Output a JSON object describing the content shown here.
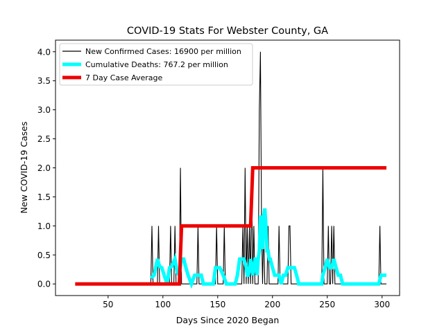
{
  "chart_data": {
    "type": "line",
    "title": "COVID-19 Stats For Webster County, GA",
    "xlabel": "Days Since 2020 Began",
    "ylabel": "New COVID-19 Cases",
    "xlim": [
      2,
      316
    ],
    "ylim": [
      -0.2,
      4.2
    ],
    "xticks": [
      50,
      100,
      150,
      200,
      250,
      300
    ],
    "yticks": [
      0.0,
      0.5,
      1.0,
      1.5,
      2.0,
      2.5,
      3.0,
      3.5,
      4.0
    ],
    "xtick_labels": [
      "50",
      "100",
      "150",
      "200",
      "250",
      "300"
    ],
    "ytick_labels": [
      "0.0",
      "0.5",
      "1.0",
      "1.5",
      "2.0",
      "2.5",
      "3.0",
      "3.5",
      "4.0"
    ],
    "grid": false,
    "legend_position": "top-left",
    "series": [
      {
        "name": "New Confirmed Cases: 16900 per million",
        "color": "#000000",
        "style": "thin",
        "x": [
          89,
          90,
          91,
          95,
          96,
          97,
          101,
          106,
          107,
          108,
          110,
          111,
          112,
          115,
          116,
          117,
          118,
          131,
          132,
          133,
          148,
          149,
          150,
          155,
          156,
          157,
          172,
          173,
          174,
          175,
          176,
          177,
          178,
          179,
          180,
          181,
          182,
          183,
          184,
          187,
          188,
          189,
          190,
          191,
          192,
          193,
          195,
          196,
          197,
          205,
          206,
          207,
          214,
          215,
          216,
          217,
          245,
          246,
          247,
          250,
          251,
          252,
          253,
          254,
          255,
          256,
          257,
          258,
          297,
          298,
          299,
          303
        ],
        "y": [
          0,
          1,
          0,
          0,
          1,
          0,
          0,
          0,
          1,
          0,
          0,
          1,
          0,
          0,
          2,
          0,
          0,
          0,
          1,
          0,
          0,
          1,
          0,
          0,
          1,
          0,
          0,
          1,
          0,
          2,
          0,
          1,
          0,
          1,
          0,
          2,
          0,
          1,
          0,
          0,
          3,
          4,
          1,
          0,
          1,
          0,
          0,
          1,
          0,
          0,
          1,
          0,
          0,
          1,
          1,
          0,
          0,
          2,
          0,
          0,
          1,
          0,
          0,
          1,
          0,
          1,
          0,
          0,
          0,
          1,
          0,
          0
        ]
      },
      {
        "name": "Cumulative Deaths: 767.2 per million",
        "color": "#00ffff",
        "style": "thick",
        "x": [
          89,
          92,
          95,
          97,
          99,
          102,
          104,
          106,
          108,
          111,
          113,
          115,
          117,
          119,
          121,
          123,
          126,
          129,
          132,
          135,
          137,
          139,
          141,
          143,
          146,
          148,
          150,
          152,
          155,
          158,
          161,
          164,
          166,
          168,
          170,
          172,
          174,
          176,
          177,
          178,
          179,
          180,
          181,
          182,
          183,
          184,
          185,
          186,
          187,
          188,
          189,
          190,
          191,
          192,
          193,
          194,
          195,
          196,
          197,
          198,
          200,
          202,
          204,
          206,
          208,
          210,
          212,
          214,
          216,
          218,
          220,
          222,
          224,
          226,
          230,
          235,
          240,
          243,
          245,
          246,
          248,
          250,
          252,
          254,
          256,
          258,
          260,
          262,
          264,
          268,
          275,
          285,
          295,
          297,
          299,
          304
        ],
        "y": [
          0.1,
          0.15,
          0.43,
          0.3,
          0.28,
          0.1,
          0.0,
          0.28,
          0.3,
          0.43,
          0.2,
          0.15,
          0.43,
          0.43,
          0.28,
          0.15,
          0.0,
          0.15,
          0.15,
          0.15,
          0.0,
          0.0,
          0.0,
          0.0,
          0.0,
          0.28,
          0.28,
          0.28,
          0.15,
          0.0,
          0.0,
          0.0,
          0.0,
          0.15,
          0.43,
          0.43,
          0.43,
          0.28,
          0.15,
          0.15,
          0.28,
          0.43,
          0.28,
          0.15,
          0.28,
          0.43,
          0.43,
          0.15,
          0.43,
          0.57,
          1.15,
          1.15,
          0.6,
          1.15,
          1.3,
          1.0,
          0.57,
          0.57,
          0.43,
          0.43,
          0.28,
          0.15,
          0.15,
          0.15,
          0.0,
          0.15,
          0.15,
          0.28,
          0.28,
          0.28,
          0.28,
          0.15,
          0.0,
          0.0,
          0.0,
          0.0,
          0.0,
          0.0,
          0.0,
          0.15,
          0.28,
          0.43,
          0.28,
          0.28,
          0.43,
          0.28,
          0.15,
          0.15,
          0.0,
          0.0,
          0.0,
          0.0,
          0.0,
          0.0,
          0.15,
          0.15
        ]
      },
      {
        "name": "7 Day Case Average",
        "color": "#ee0000",
        "style": "thick",
        "x": [
          20,
          115,
          117,
          180,
          182,
          304
        ],
        "y": [
          0,
          0,
          1,
          1,
          2,
          2
        ]
      }
    ]
  }
}
